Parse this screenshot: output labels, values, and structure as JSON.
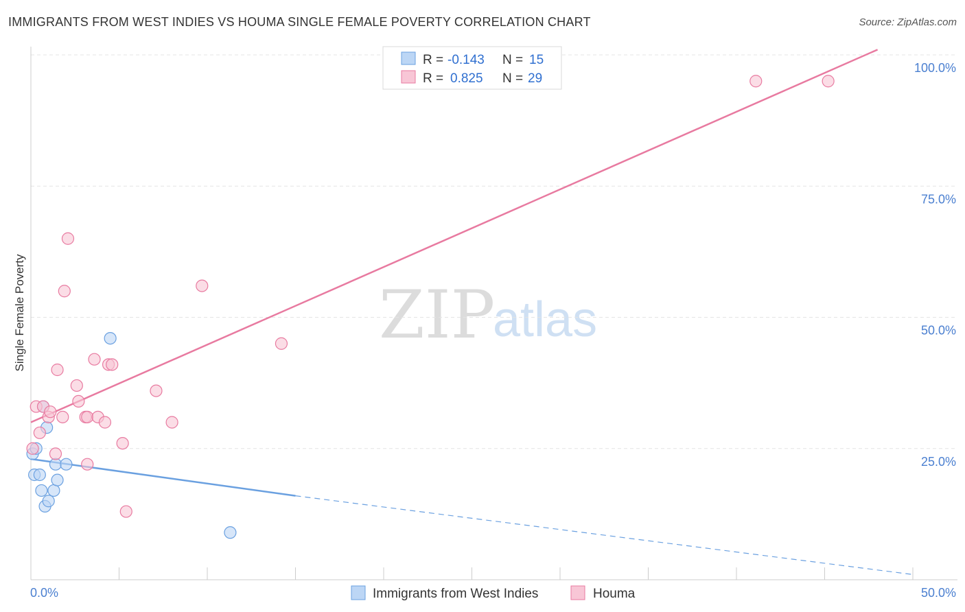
{
  "header": {
    "title": "IMMIGRANTS FROM WEST INDIES VS HOUMA SINGLE FEMALE POVERTY CORRELATION CHART",
    "source": "Source: ZipAtlas.com"
  },
  "watermark": {
    "zip": "ZIP",
    "atlas": "atlas"
  },
  "stats_legend": {
    "rows": [
      {
        "r_label": "R = ",
        "r_value": "-0.143",
        "n_label": "N = ",
        "n_value": "15",
        "color": "#a8c8f0"
      },
      {
        "r_label": "R = ",
        "r_value": "0.825",
        "n_label": "N = ",
        "n_value": "29",
        "color": "#f5b8ca"
      }
    ]
  },
  "chart_data": {
    "type": "scatter",
    "title": "IMMIGRANTS FROM WEST INDIES VS HOUMA SINGLE FEMALE POVERTY CORRELATION CHART",
    "xlabel": "",
    "ylabel": "Single Female Poverty",
    "xlim": [
      0,
      50
    ],
    "ylim": [
      0,
      100
    ],
    "x_tick_labels": [
      "0.0%",
      "50.0%"
    ],
    "y_ticks": [
      25,
      50,
      75,
      100
    ],
    "y_tick_labels": [
      "25.0%",
      "50.0%",
      "75.0%",
      "100.0%"
    ],
    "grid": true,
    "legend_position": "bottom-center",
    "series": [
      {
        "name": "Immigrants from West Indies",
        "color": "#6aa0e0",
        "fill": "#bcd6f5",
        "points": [
          [
            0.1,
            24
          ],
          [
            0.2,
            20
          ],
          [
            0.3,
            25
          ],
          [
            0.5,
            20
          ],
          [
            0.6,
            17
          ],
          [
            0.7,
            33
          ],
          [
            0.8,
            14
          ],
          [
            0.9,
            29
          ],
          [
            1.0,
            15
          ],
          [
            1.3,
            17
          ],
          [
            1.4,
            22
          ],
          [
            1.5,
            19
          ],
          [
            2.0,
            22
          ],
          [
            4.5,
            46
          ],
          [
            11.3,
            9
          ]
        ],
        "trend": {
          "x0": 0,
          "y0": 23,
          "x1": 15,
          "y1": 16,
          "dashed_to_x": 50,
          "dashed_to_y": 1
        }
      },
      {
        "name": "Houma",
        "color": "#e87aa0",
        "fill": "#f8c6d6",
        "points": [
          [
            0.1,
            25
          ],
          [
            0.3,
            33
          ],
          [
            0.5,
            28
          ],
          [
            0.7,
            33
          ],
          [
            1.0,
            31
          ],
          [
            1.1,
            32
          ],
          [
            1.4,
            24
          ],
          [
            1.5,
            40
          ],
          [
            1.8,
            31
          ],
          [
            1.9,
            55
          ],
          [
            2.1,
            65
          ],
          [
            2.6,
            37
          ],
          [
            2.7,
            34
          ],
          [
            3.1,
            31
          ],
          [
            3.2,
            31
          ],
          [
            3.2,
            22
          ],
          [
            3.6,
            42
          ],
          [
            3.8,
            31
          ],
          [
            4.2,
            30
          ],
          [
            4.4,
            41
          ],
          [
            4.6,
            41
          ],
          [
            5.2,
            26
          ],
          [
            5.4,
            13
          ],
          [
            7.1,
            36
          ],
          [
            8.0,
            30
          ],
          [
            9.7,
            56
          ],
          [
            14.2,
            45
          ],
          [
            41.1,
            95
          ],
          [
            45.2,
            95
          ]
        ],
        "trend": {
          "x0": 0,
          "y0": 30,
          "x1": 48,
          "y1": 101
        }
      }
    ]
  }
}
